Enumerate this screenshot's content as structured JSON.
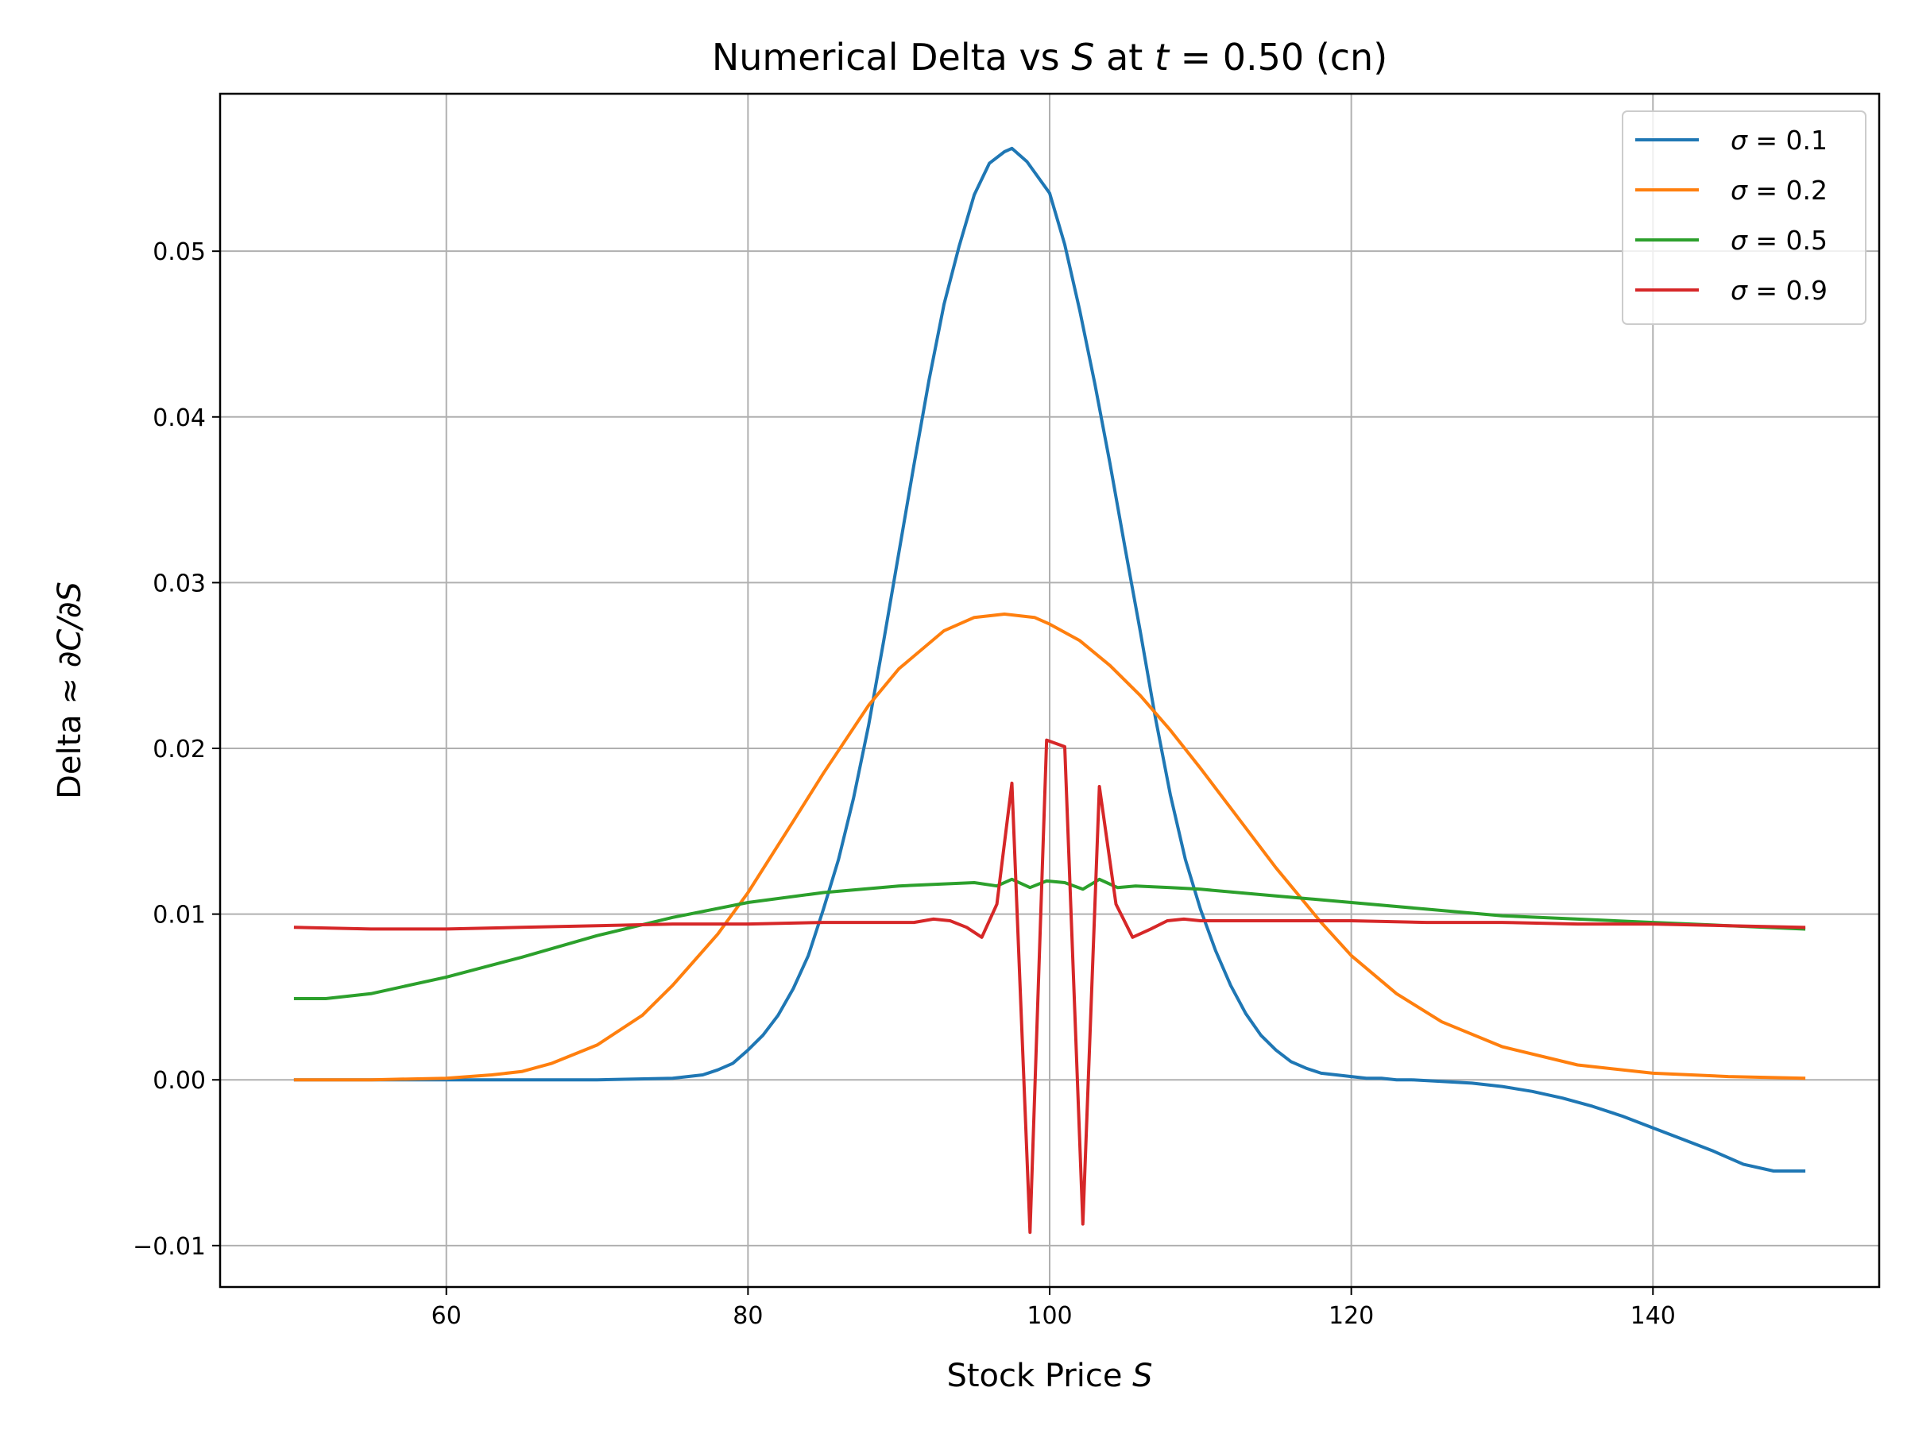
{
  "chart_data": {
    "type": "line",
    "title": {
      "prefix": "Numerical Delta vs ",
      "s": "S",
      "mid": " at ",
      "t": "t",
      "suffix": " = 0.50 (cn)"
    },
    "xlabel": {
      "text": "Stock Price ",
      "italic": "S"
    },
    "ylabel": {
      "text": "Delta  ≈ ",
      "italic": "∂C/∂S"
    },
    "xlim": [
      45,
      155
    ],
    "ylim": [
      -0.0125,
      0.0595
    ],
    "xticks": [
      60,
      80,
      100,
      120,
      140
    ],
    "xtick_labels": [
      "60",
      "80",
      "100",
      "120",
      "140"
    ],
    "yticks": [
      -0.01,
      0.0,
      0.01,
      0.02,
      0.03,
      0.04,
      0.05
    ],
    "ytick_labels": [
      "−0.01",
      "0.00",
      "0.01",
      "0.02",
      "0.03",
      "0.04",
      "0.05"
    ],
    "grid": true,
    "legend_position": "top-right",
    "series": [
      {
        "name": "σ = 0.1",
        "label_symbol": "σ",
        "label_value": " = 0.1",
        "color": "#1f77b4",
        "x": [
          50,
          60,
          70,
          75,
          77,
          78,
          79,
          80,
          81,
          82,
          83,
          84,
          85,
          86,
          87,
          88,
          89,
          90,
          91,
          92,
          93,
          94,
          95,
          96,
          97,
          97.5,
          98.5,
          100,
          101,
          102,
          103,
          104,
          105,
          106,
          107,
          108,
          109,
          110,
          111,
          112,
          113,
          114,
          115,
          116,
          117,
          118,
          119,
          120,
          121,
          122,
          123,
          124,
          126,
          128,
          130,
          132,
          134,
          136,
          138,
          140,
          142,
          144,
          146,
          148,
          150
        ],
        "y": [
          0,
          0,
          0,
          0.0001,
          0.0003,
          0.0006,
          0.001,
          0.0018,
          0.0027,
          0.0039,
          0.0055,
          0.0075,
          0.0103,
          0.0133,
          0.017,
          0.0214,
          0.0265,
          0.0318,
          0.0371,
          0.0422,
          0.0468,
          0.0503,
          0.0534,
          0.0553,
          0.056,
          0.0562,
          0.0554,
          0.0535,
          0.0504,
          0.0464,
          0.042,
          0.0372,
          0.0321,
          0.0271,
          0.0219,
          0.0172,
          0.0133,
          0.0103,
          0.0078,
          0.0057,
          0.004,
          0.0027,
          0.0018,
          0.0011,
          0.0007,
          0.0004,
          0.0003,
          0.0002,
          0.0001,
          0.0001,
          0.0,
          0.0,
          -0.0001,
          -0.0002,
          -0.0004,
          -0.0007,
          -0.0011,
          -0.0016,
          -0.0022,
          -0.0029,
          -0.0036,
          -0.0043,
          -0.0051,
          -0.0055,
          -0.0055
        ]
      },
      {
        "name": "σ = 0.2",
        "label_symbol": "σ",
        "label_value": " = 0.2",
        "color": "#ff7f0e",
        "x": [
          50,
          55,
          60,
          63,
          65,
          67,
          70,
          73,
          75,
          78,
          80,
          83,
          85,
          88,
          90,
          93,
          95,
          97,
          99,
          100,
          102,
          104,
          106,
          108,
          110,
          112,
          115,
          118,
          120,
          123,
          126,
          130,
          135,
          140,
          145,
          150
        ],
        "y": [
          0,
          0,
          0.0001,
          0.0003,
          0.0005,
          0.001,
          0.0021,
          0.0039,
          0.0057,
          0.0088,
          0.0113,
          0.0156,
          0.0185,
          0.0226,
          0.0248,
          0.0271,
          0.0279,
          0.0281,
          0.0279,
          0.0275,
          0.0265,
          0.025,
          0.0232,
          0.0211,
          0.0188,
          0.0164,
          0.0128,
          0.0095,
          0.0075,
          0.0052,
          0.0035,
          0.002,
          0.0009,
          0.0004,
          0.0002,
          0.0001
        ]
      },
      {
        "name": "σ = 0.5",
        "label_symbol": "σ",
        "label_value": " = 0.5",
        "color": "#2ca02c",
        "x": [
          50,
          52,
          55,
          60,
          65,
          70,
          75,
          80,
          85,
          90,
          95,
          96.5,
          97.5,
          98.7,
          99.8,
          101,
          102.2,
          103.3,
          104.5,
          105.7,
          108,
          110,
          115,
          120,
          125,
          130,
          135,
          140,
          145,
          150
        ],
        "y": [
          0.0049,
          0.0049,
          0.0052,
          0.0062,
          0.0074,
          0.0087,
          0.0098,
          0.0107,
          0.0113,
          0.0117,
          0.0119,
          0.0117,
          0.0121,
          0.0116,
          0.012,
          0.0119,
          0.0115,
          0.0121,
          0.0116,
          0.0117,
          0.0116,
          0.0115,
          0.0111,
          0.0107,
          0.0103,
          0.0099,
          0.0097,
          0.0095,
          0.0093,
          0.0091
        ]
      },
      {
        "name": "σ = 0.9",
        "label_symbol": "σ",
        "label_value": " = 0.9",
        "color": "#d62728",
        "x": [
          50,
          55,
          60,
          65,
          70,
          75,
          80,
          85,
          90,
          91,
          92.3,
          93.4,
          94.5,
          95.5,
          96.5,
          97.5,
          98.7,
          99.8,
          101,
          102.2,
          103.3,
          104.4,
          105.5,
          106.7,
          107.8,
          108.9,
          110,
          115,
          120,
          125,
          130,
          135,
          140,
          145,
          150
        ],
        "y": [
          0.0092,
          0.0091,
          0.0091,
          0.0092,
          0.0093,
          0.0094,
          0.0094,
          0.0095,
          0.0095,
          0.0095,
          0.0097,
          0.0096,
          0.0092,
          0.0086,
          0.0106,
          0.0179,
          -0.0092,
          0.0205,
          0.0201,
          -0.0087,
          0.0177,
          0.0106,
          0.0086,
          0.0091,
          0.0096,
          0.0097,
          0.0096,
          0.0096,
          0.0096,
          0.0095,
          0.0095,
          0.0094,
          0.0094,
          0.0093,
          0.0092
        ]
      }
    ]
  }
}
